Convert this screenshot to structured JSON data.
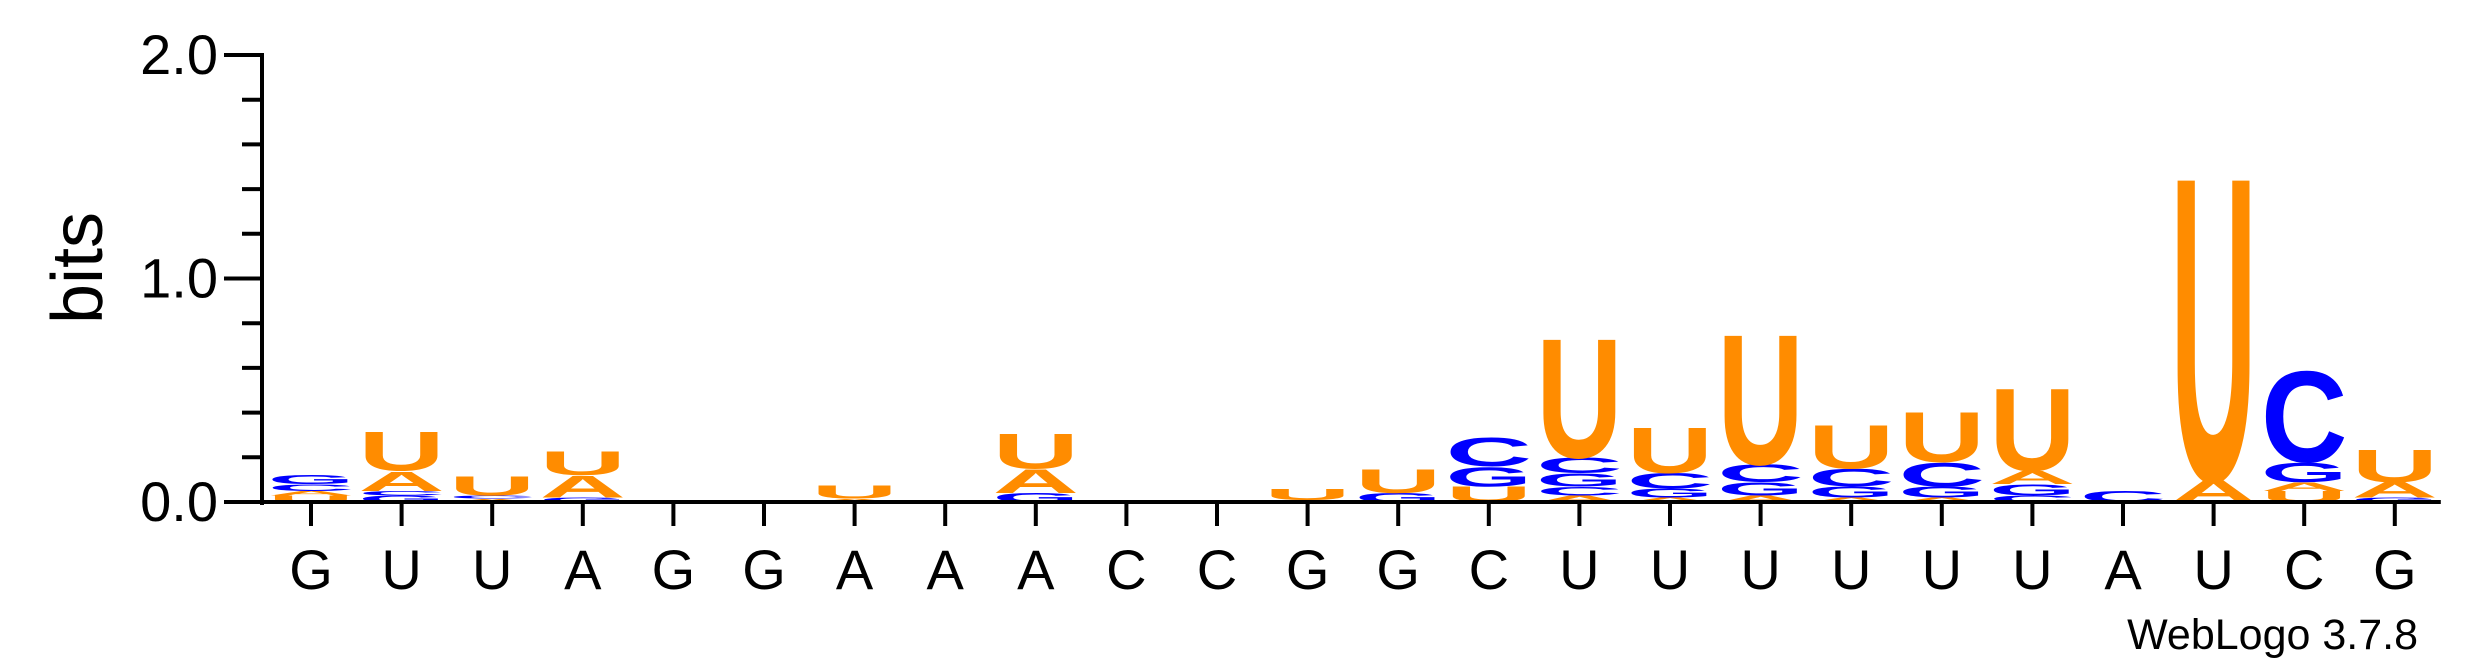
{
  "chart_data": {
    "type": "sequence-logo",
    "ylabel": "bits",
    "ylim": [
      0,
      2.0
    ],
    "yticks": [
      "0.0",
      "1.0",
      "2.0"
    ],
    "footer": "WebLogo 3.7.8",
    "colors": {
      "U": "#ff8c00",
      "A": "#ff8c00",
      "C": "#0000ff",
      "G": "#0000ff"
    },
    "positions": [
      {
        "label": "G",
        "stack": [
          [
            "U",
            0.03
          ],
          [
            "A",
            0.02
          ],
          [
            "C",
            0.03
          ],
          [
            "G",
            0.04
          ]
        ]
      },
      {
        "label": "U",
        "stack": [
          [
            "G",
            0.03
          ],
          [
            "C",
            0.02
          ],
          [
            "A",
            0.09
          ],
          [
            "U",
            0.18
          ]
        ]
      },
      {
        "label": "U",
        "stack": [
          [
            "A",
            0.015
          ],
          [
            "C",
            0.015
          ],
          [
            "U",
            0.09
          ]
        ]
      },
      {
        "label": "A",
        "stack": [
          [
            "G",
            0.02
          ],
          [
            "A",
            0.1
          ],
          [
            "U",
            0.11
          ]
        ]
      },
      {
        "label": "G",
        "stack": []
      },
      {
        "label": "G",
        "stack": []
      },
      {
        "label": "A",
        "stack": [
          [
            "A",
            0.015
          ],
          [
            "U",
            0.06
          ]
        ]
      },
      {
        "label": "A",
        "stack": []
      },
      {
        "label": "A",
        "stack": [
          [
            "G",
            0.04
          ],
          [
            "A",
            0.11
          ],
          [
            "U",
            0.16
          ]
        ]
      },
      {
        "label": "C",
        "stack": []
      },
      {
        "label": "C",
        "stack": []
      },
      {
        "label": "G",
        "stack": [
          [
            "C",
            0.01
          ],
          [
            "U",
            0.05
          ]
        ]
      },
      {
        "label": "G",
        "stack": [
          [
            "G",
            0.04
          ],
          [
            "U",
            0.11
          ]
        ]
      },
      {
        "label": "C",
        "stack": [
          [
            "U",
            0.07
          ],
          [
            "G",
            0.09
          ],
          [
            "C",
            0.13
          ]
        ]
      },
      {
        "label": "U",
        "stack": [
          [
            "A",
            0.03
          ],
          [
            "C",
            0.04
          ],
          [
            "G",
            0.06
          ],
          [
            "C",
            0.07
          ],
          [
            "U",
            0.55
          ]
        ]
      },
      {
        "label": "U",
        "stack": [
          [
            "A",
            0.02
          ],
          [
            "G",
            0.04
          ],
          [
            "C",
            0.07
          ],
          [
            "U",
            0.21
          ]
        ]
      },
      {
        "label": "U",
        "stack": [
          [
            "A",
            0.03
          ],
          [
            "G",
            0.06
          ],
          [
            "C",
            0.08
          ],
          [
            "U",
            0.6
          ]
        ]
      },
      {
        "label": "U",
        "stack": [
          [
            "A",
            0.02
          ],
          [
            "G",
            0.05
          ],
          [
            "C",
            0.08
          ],
          [
            "U",
            0.2
          ]
        ]
      },
      {
        "label": "U",
        "stack": [
          [
            "A",
            0.02
          ],
          [
            "G",
            0.05
          ],
          [
            "C",
            0.11
          ],
          [
            "U",
            0.23
          ]
        ]
      },
      {
        "label": "U",
        "stack": [
          [
            "C",
            0.03
          ],
          [
            "G",
            0.05
          ],
          [
            "A",
            0.06
          ],
          [
            "U",
            0.38
          ]
        ]
      },
      {
        "label": "A",
        "stack": [
          [
            "C",
            0.05
          ]
        ]
      },
      {
        "label": "U",
        "stack": [
          [
            "A",
            0.1
          ],
          [
            "U",
            1.4
          ]
        ]
      },
      {
        "label": "C",
        "stack": [
          [
            "U",
            0.05
          ],
          [
            "A",
            0.04
          ],
          [
            "G",
            0.09
          ],
          [
            "C",
            0.42
          ]
        ]
      },
      {
        "label": "G",
        "stack": [
          [
            "G",
            0.02
          ],
          [
            "A",
            0.07
          ],
          [
            "U",
            0.15
          ]
        ]
      }
    ]
  }
}
